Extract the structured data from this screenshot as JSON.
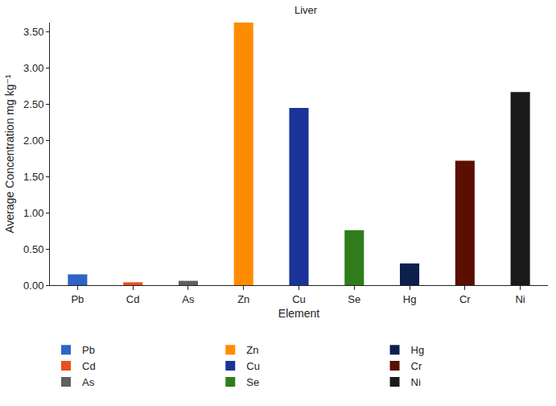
{
  "chart_data": {
    "type": "bar",
    "title": "Liver",
    "x_label": "Element",
    "y_label": "Average Concentration mg kg⁻¹",
    "categories": [
      "Pb",
      "Cd",
      "As",
      "Zn",
      "Cu",
      "Se",
      "Hg",
      "Cr",
      "Ni"
    ],
    "values": [
      0.15,
      0.04,
      0.06,
      3.63,
      2.45,
      0.76,
      0.3,
      1.72,
      2.67
    ],
    "colors": [
      "#2e64c8",
      "#e8501e",
      "#606060",
      "#ff8c00",
      "#1a3399",
      "#2e7d1a",
      "#0d1f4d",
      "#5a0f00",
      "#1a1a1a"
    ],
    "ylim": [
      0,
      3.63
    ],
    "yticks": [
      {
        "value": 0,
        "label": "0.00"
      },
      {
        "value": 0.5,
        "label": "0.50"
      },
      {
        "value": 1,
        "label": "1.00"
      },
      {
        "value": 1.5,
        "label": "1.50"
      },
      {
        "value": 2,
        "label": "2.00"
      },
      {
        "value": 2.5,
        "label": "2.50"
      },
      {
        "value": 3,
        "label": "3.00"
      },
      {
        "value": 3.5,
        "label": "3.50"
      }
    ],
    "grid": false,
    "legend": "bottom"
  }
}
